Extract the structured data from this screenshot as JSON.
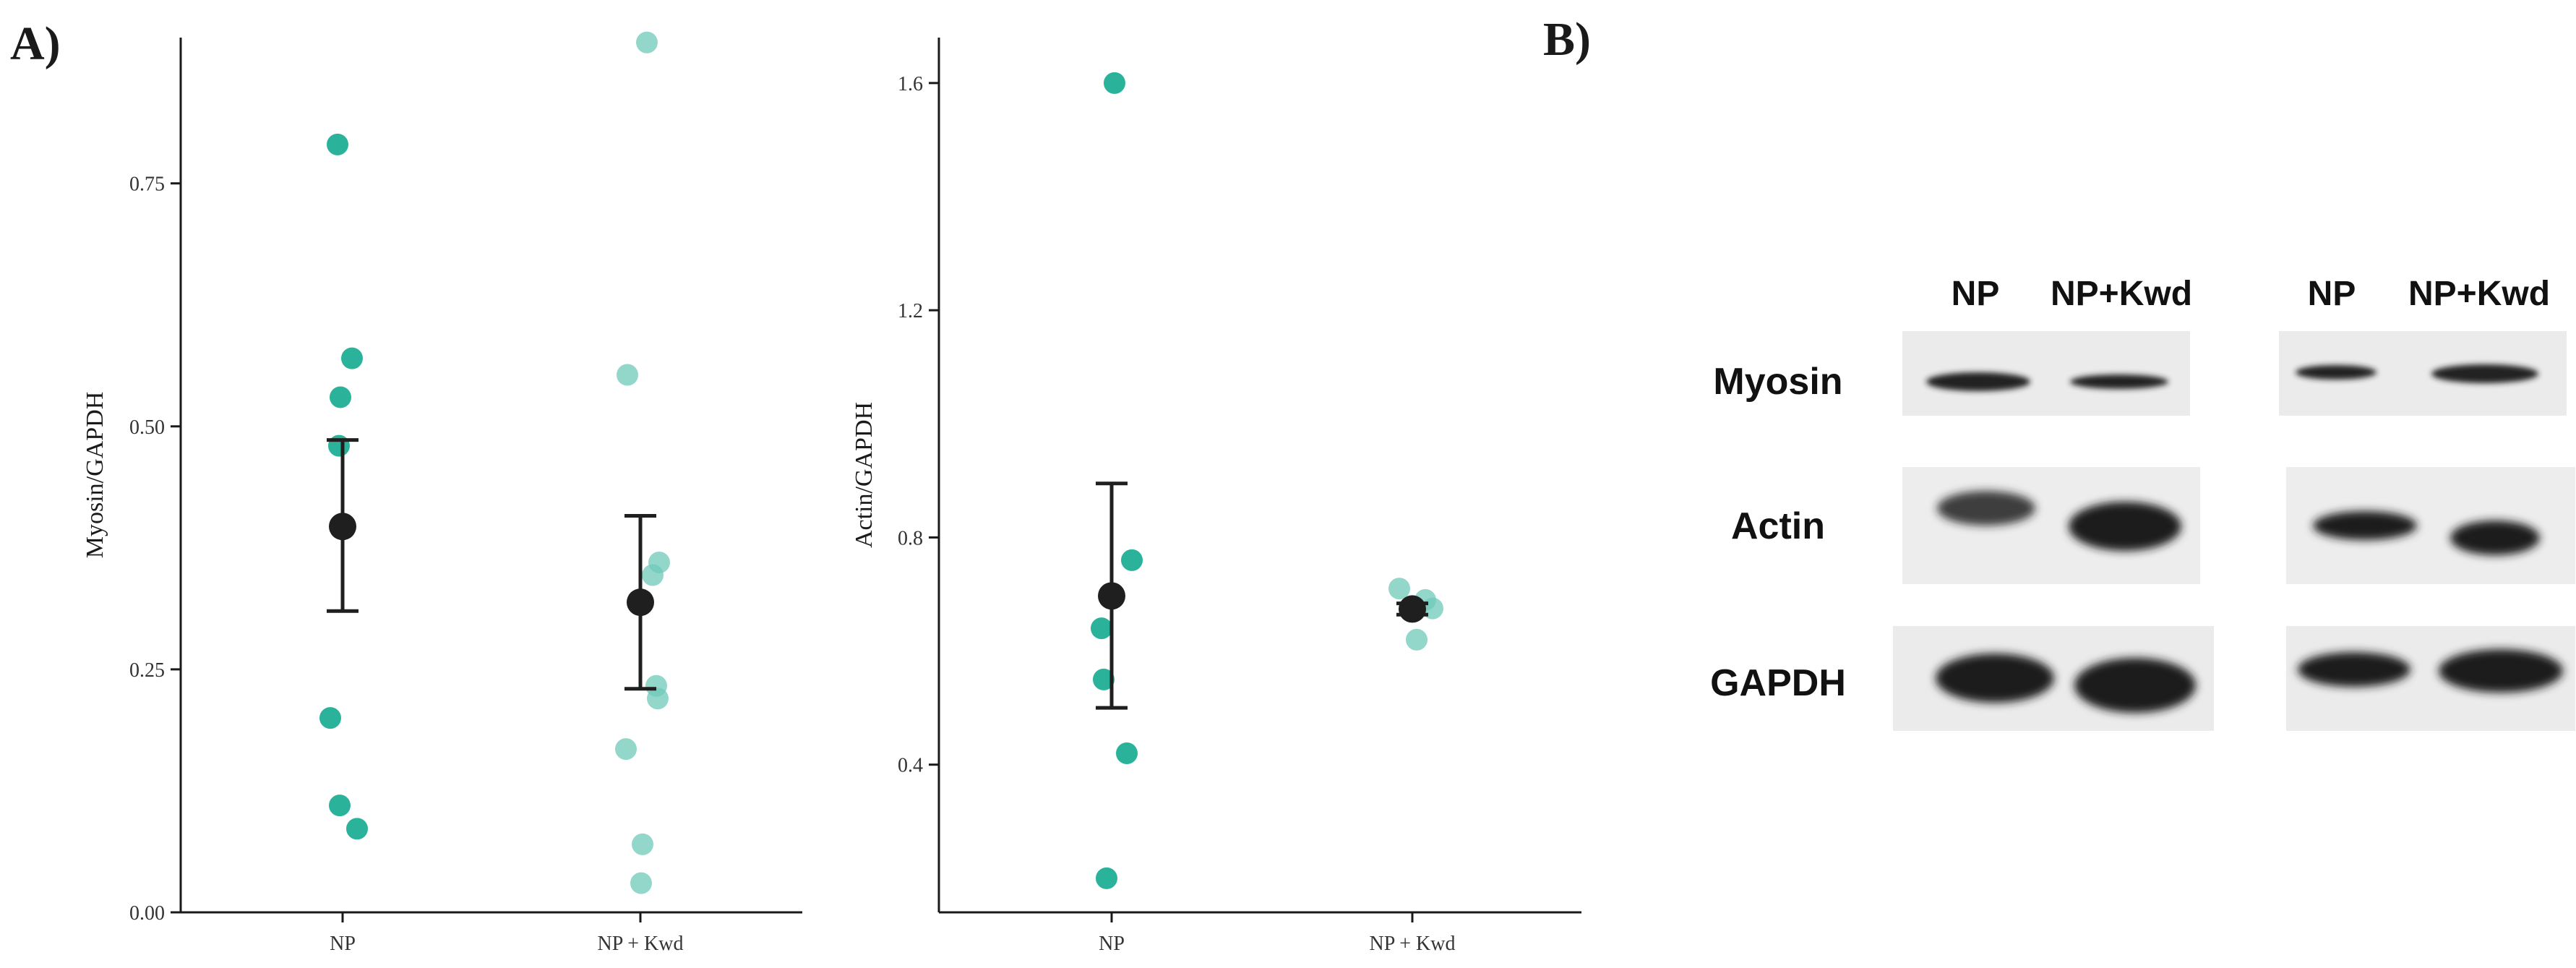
{
  "panel_labels": {
    "a": "A)",
    "b": "B)"
  },
  "colors": {
    "point_np": "#1fae96",
    "point_kwd": "#6fcab9",
    "mean": "#1f1f1f",
    "band": "#1e1e1e"
  },
  "chart_data": [
    {
      "type": "scatter",
      "ylabel": "Myosin/GAPDH",
      "xlabel": "",
      "categories": [
        "NP",
        "NP + Kwd"
      ],
      "ylim": [
        0,
        0.9
      ],
      "yticks": [
        "0.00",
        "0.25",
        "0.50",
        "0.75"
      ],
      "ytick_values": [
        0,
        0.25,
        0.5,
        0.75
      ],
      "series": [
        {
          "category": "NP",
          "points": [
            0.79,
            0.57,
            0.53,
            0.48,
            0.2,
            0.11,
            0.086
          ],
          "mean": 0.397,
          "error_low": 0.31,
          "error_high": 0.486
        },
        {
          "category": "NP + Kwd",
          "points": [
            0.895,
            0.553,
            0.36,
            0.347,
            0.233,
            0.22,
            0.168,
            0.07,
            0.03
          ],
          "mean": 0.319,
          "error_low": 0.23,
          "error_high": 0.408
        }
      ],
      "grid": false
    },
    {
      "type": "scatter",
      "ylabel": "Actin/GAPDH",
      "xlabel": "",
      "categories": [
        "NP",
        "NP + Kwd"
      ],
      "ylim": [
        0.14,
        1.68
      ],
      "yticks": [
        "0.4",
        "0.8",
        "1.2",
        "1.6"
      ],
      "ytick_values": [
        0.4,
        0.8,
        1.2,
        1.6
      ],
      "series": [
        {
          "category": "NP",
          "points": [
            1.6,
            0.76,
            0.64,
            0.55,
            0.42,
            0.2
          ],
          "mean": 0.697,
          "error_low": 0.5,
          "error_high": 0.895
        },
        {
          "category": "NP + Kwd",
          "points": [
            0.71,
            0.69,
            0.675,
            0.67,
            0.62
          ],
          "mean": 0.674,
          "error_low": 0.664,
          "error_high": 0.684
        }
      ],
      "grid": false
    }
  ],
  "blots": {
    "column_labels": [
      "NP",
      "NP+Kwd"
    ],
    "row_labels": [
      "Myosin",
      "Actin",
      "GAPDH"
    ]
  }
}
